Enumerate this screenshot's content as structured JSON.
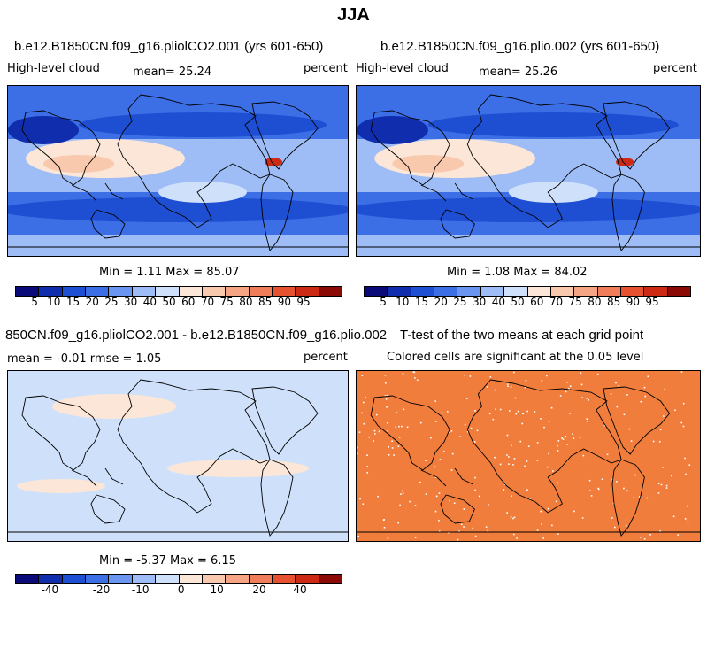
{
  "title": "JJA",
  "panels": {
    "p1": {
      "title": "b.e12.B1850CN.f09_g16.pliolCO2.001 (yrs 601-650)",
      "left": "High-level cloud",
      "center": "mean=  25.24",
      "right": "percent",
      "stats": "Min =    1.11 Max =  85.07"
    },
    "p2": {
      "title": "b.e12.B1850CN.f09_g16.plio.002 (yrs 601-650)",
      "left": "High-level cloud",
      "center": "mean=  25.26",
      "right": "percent",
      "stats": "Min =    1.08 Max =  84.02"
    },
    "p3": {
      "title": "850CN.f09_g16.pliolCO2.001 - b.e12.B1850CN.f09_g16.plio.002",
      "left": "mean =  -0.01     rmse =    1.05",
      "right": "percent",
      "stats": "Min =  -5.37 Max =    6.15"
    },
    "p4": {
      "title": "T-test of the two means at each grid point",
      "sub": "Colored cells are significant at the 0.05 level"
    }
  },
  "colorbar_top": {
    "colors": [
      "#0a0a78",
      "#0f2dad",
      "#1e4fd2",
      "#3c6ee6",
      "#6a95f0",
      "#9ebcf5",
      "#cfe1fa",
      "#fbe6d8",
      "#f8c9ad",
      "#f5a583",
      "#f07d5a",
      "#e6522f",
      "#cc2a14",
      "#8c0a05"
    ],
    "labels": [
      "5",
      "10",
      "15",
      "20",
      "25",
      "30",
      "40",
      "50",
      "60",
      "70",
      "75",
      "80",
      "85",
      "90",
      "95"
    ]
  },
  "colorbar_bottom": {
    "colors": [
      "#0a0a78",
      "#0f2dad",
      "#1e4fd2",
      "#3c6ee6",
      "#6a95f0",
      "#9ebcf5",
      "#cfe1fa",
      "#fbe6d8",
      "#f8c9ad",
      "#f5a583",
      "#f07d5a",
      "#e6522f",
      "#cc2a14",
      "#8c0a05"
    ],
    "labels": [
      "-40",
      "-20",
      "-10",
      "0",
      "10",
      "20",
      "40"
    ]
  }
}
